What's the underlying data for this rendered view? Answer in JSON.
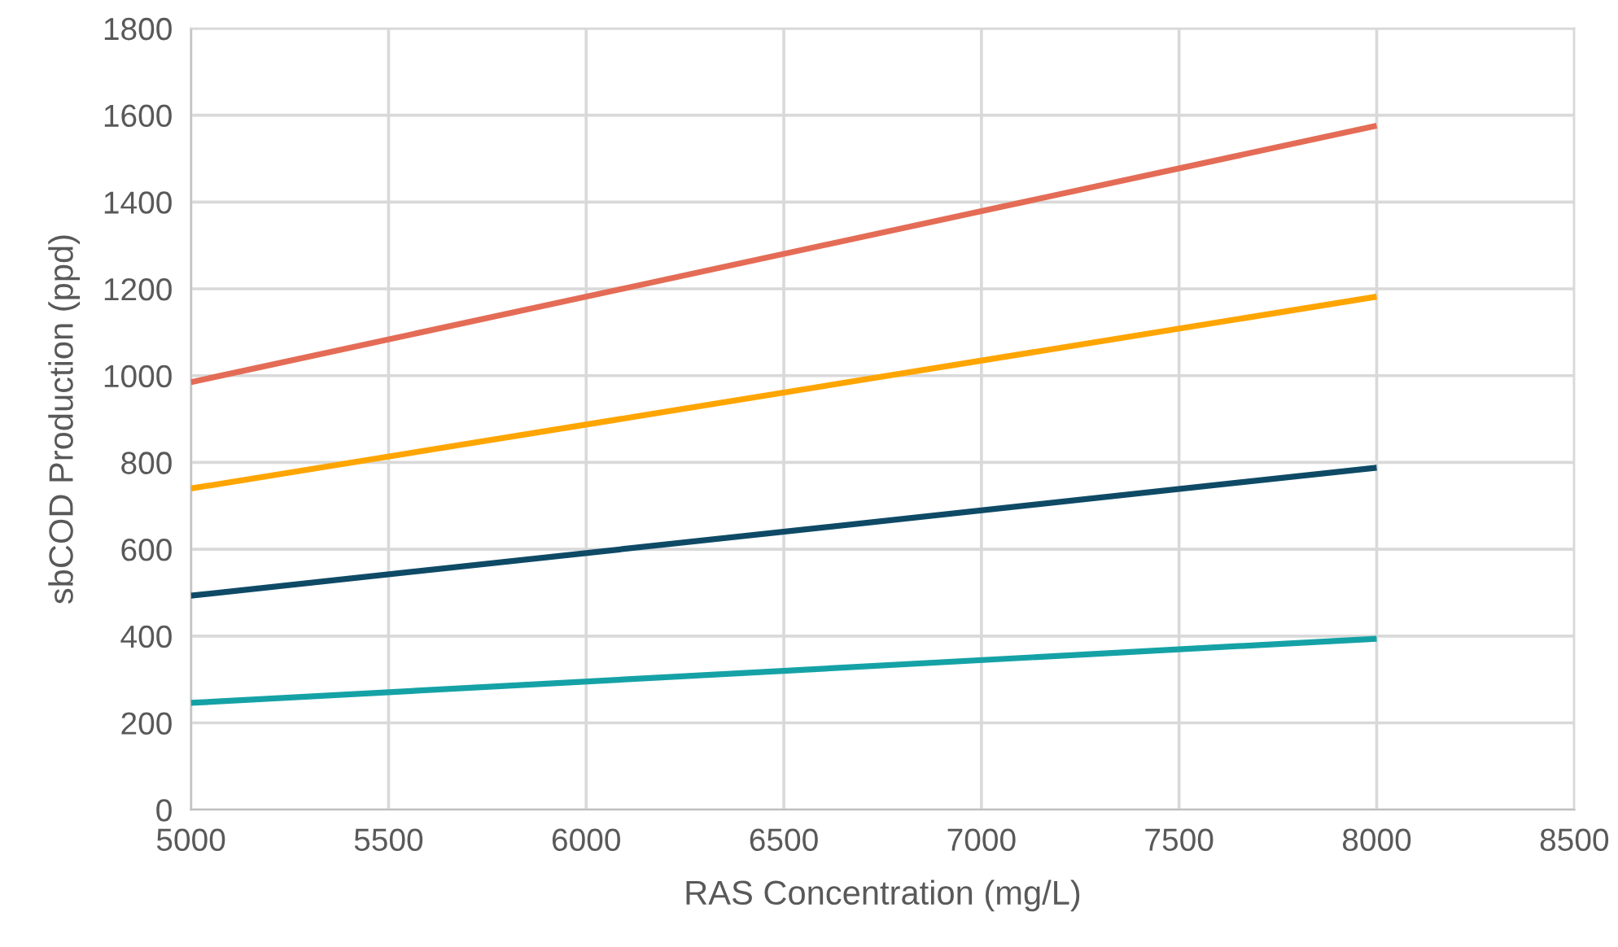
{
  "chart_data": {
    "type": "line",
    "xlabel": "RAS Concentration (mg/L)",
    "ylabel": "sbCOD Production (ppd)",
    "x": [
      5000,
      8000
    ],
    "series": [
      {
        "color": "#e46c56",
        "values": [
          985,
          1576
        ]
      },
      {
        "color": "#ffa502",
        "values": [
          740,
          1182
        ]
      },
      {
        "color": "#0e4a66",
        "values": [
          493,
          788
        ]
      },
      {
        "color": "#15a2a6",
        "values": [
          246,
          394
        ]
      }
    ],
    "xlim": [
      5000,
      8500
    ],
    "xticks": [
      5000,
      5500,
      6000,
      6500,
      7000,
      7500,
      8000,
      8500
    ],
    "ylim": [
      0,
      1800
    ],
    "yticks": [
      0,
      200,
      400,
      600,
      800,
      1000,
      1200,
      1400,
      1600,
      1800
    ],
    "grid": true,
    "marker": "none",
    "line_style": "solid"
  }
}
